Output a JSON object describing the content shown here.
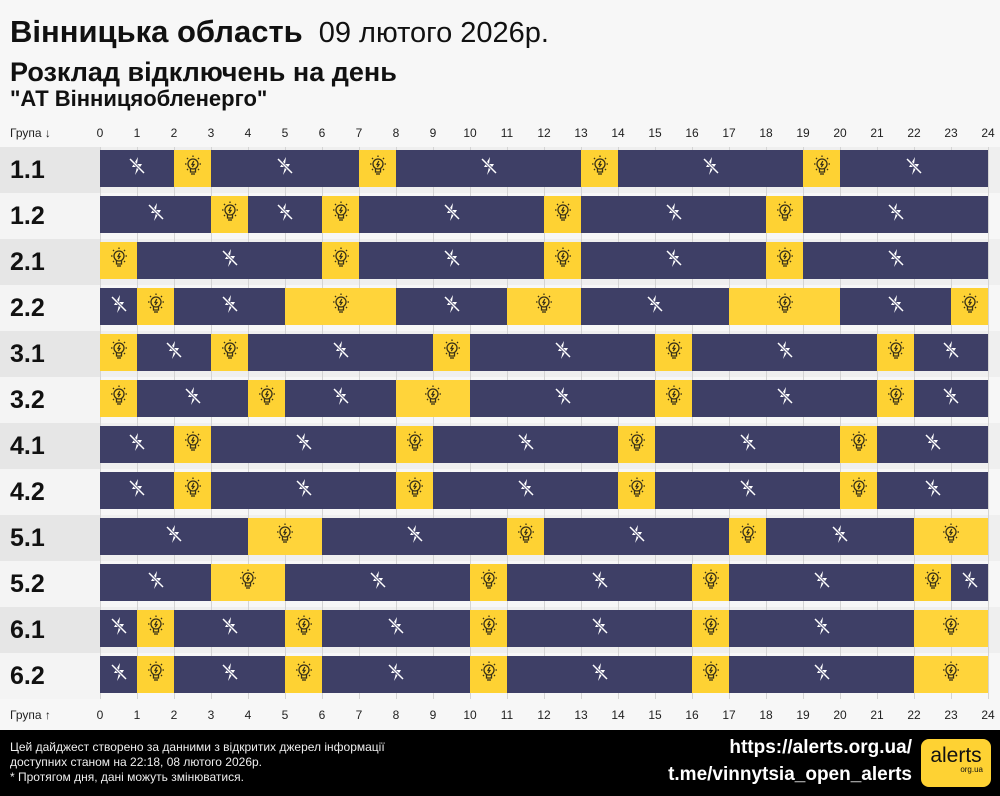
{
  "header": {
    "region": "Вінницька область",
    "date": "09 лютого 2026р.",
    "title": "Розклад відключень на день",
    "company": "\"АТ Вінницяобленерго\""
  },
  "axis": {
    "top_label": "Група ↓",
    "bottom_label": "Група ↑",
    "hours": [
      "0",
      "1",
      "2",
      "3",
      "4",
      "5",
      "6",
      "7",
      "8",
      "9",
      "10",
      "11",
      "12",
      "13",
      "14",
      "15",
      "16",
      "17",
      "18",
      "19",
      "20",
      "21",
      "22",
      "23",
      "24"
    ]
  },
  "colors": {
    "off": "#3e3f66",
    "on": "#fed233",
    "footer_bg": "#000000"
  },
  "icons": {
    "off": "no-power-lightning-icon",
    "on": "lightbulb-icon"
  },
  "chart_data": {
    "type": "timeline",
    "x_range": [
      0,
      24
    ],
    "x_unit": "hour",
    "groups": [
      {
        "name": "1.1",
        "segments": [
          [
            0,
            2,
            "off"
          ],
          [
            2,
            3,
            "on"
          ],
          [
            3,
            7,
            "off"
          ],
          [
            7,
            8,
            "on"
          ],
          [
            8,
            13,
            "off"
          ],
          [
            13,
            14,
            "on"
          ],
          [
            14,
            19,
            "off"
          ],
          [
            19,
            20,
            "on"
          ],
          [
            20,
            24,
            "off"
          ]
        ]
      },
      {
        "name": "1.2",
        "segments": [
          [
            0,
            3,
            "off"
          ],
          [
            3,
            4,
            "on"
          ],
          [
            4,
            6,
            "off"
          ],
          [
            6,
            7,
            "on"
          ],
          [
            7,
            12,
            "off"
          ],
          [
            12,
            13,
            "on"
          ],
          [
            13,
            18,
            "off"
          ],
          [
            18,
            19,
            "on"
          ],
          [
            19,
            24,
            "off"
          ]
        ]
      },
      {
        "name": "2.1",
        "segments": [
          [
            0,
            1,
            "on"
          ],
          [
            1,
            6,
            "off"
          ],
          [
            6,
            7,
            "on"
          ],
          [
            7,
            12,
            "off"
          ],
          [
            12,
            13,
            "on"
          ],
          [
            13,
            18,
            "off"
          ],
          [
            18,
            19,
            "on"
          ],
          [
            19,
            24,
            "off"
          ]
        ]
      },
      {
        "name": "2.2",
        "segments": [
          [
            0,
            1,
            "off"
          ],
          [
            1,
            2,
            "on"
          ],
          [
            2,
            5,
            "off"
          ],
          [
            5,
            8,
            "on"
          ],
          [
            8,
            11,
            "off"
          ],
          [
            11,
            13,
            "on"
          ],
          [
            13,
            17,
            "off"
          ],
          [
            17,
            20,
            "on"
          ],
          [
            20,
            23,
            "off"
          ],
          [
            23,
            24,
            "on"
          ]
        ]
      },
      {
        "name": "3.1",
        "segments": [
          [
            0,
            1,
            "on"
          ],
          [
            1,
            3,
            "off"
          ],
          [
            3,
            4,
            "on"
          ],
          [
            4,
            9,
            "off"
          ],
          [
            9,
            10,
            "on"
          ],
          [
            10,
            15,
            "off"
          ],
          [
            15,
            16,
            "on"
          ],
          [
            16,
            21,
            "off"
          ],
          [
            21,
            22,
            "on"
          ],
          [
            22,
            24,
            "off"
          ]
        ]
      },
      {
        "name": "3.2",
        "segments": [
          [
            0,
            1,
            "on"
          ],
          [
            1,
            4,
            "off"
          ],
          [
            4,
            5,
            "on"
          ],
          [
            5,
            8,
            "off"
          ],
          [
            8,
            10,
            "on"
          ],
          [
            10,
            15,
            "off"
          ],
          [
            15,
            16,
            "on"
          ],
          [
            16,
            21,
            "off"
          ],
          [
            21,
            22,
            "on"
          ],
          [
            22,
            24,
            "off"
          ]
        ]
      },
      {
        "name": "4.1",
        "segments": [
          [
            0,
            2,
            "off"
          ],
          [
            2,
            3,
            "on"
          ],
          [
            3,
            8,
            "off"
          ],
          [
            8,
            9,
            "on"
          ],
          [
            9,
            14,
            "off"
          ],
          [
            14,
            15,
            "on"
          ],
          [
            15,
            20,
            "off"
          ],
          [
            20,
            21,
            "on"
          ],
          [
            21,
            24,
            "off"
          ]
        ]
      },
      {
        "name": "4.2",
        "segments": [
          [
            0,
            2,
            "off"
          ],
          [
            2,
            3,
            "on"
          ],
          [
            3,
            8,
            "off"
          ],
          [
            8,
            9,
            "on"
          ],
          [
            9,
            14,
            "off"
          ],
          [
            14,
            15,
            "on"
          ],
          [
            15,
            20,
            "off"
          ],
          [
            20,
            21,
            "on"
          ],
          [
            21,
            24,
            "off"
          ]
        ]
      },
      {
        "name": "5.1",
        "segments": [
          [
            0,
            4,
            "off"
          ],
          [
            4,
            6,
            "on"
          ],
          [
            6,
            11,
            "off"
          ],
          [
            11,
            12,
            "on"
          ],
          [
            12,
            17,
            "off"
          ],
          [
            17,
            18,
            "on"
          ],
          [
            18,
            22,
            "off"
          ],
          [
            22,
            24,
            "on"
          ]
        ]
      },
      {
        "name": "5.2",
        "segments": [
          [
            0,
            3,
            "off"
          ],
          [
            3,
            5,
            "on"
          ],
          [
            5,
            10,
            "off"
          ],
          [
            10,
            11,
            "on"
          ],
          [
            11,
            16,
            "off"
          ],
          [
            16,
            17,
            "on"
          ],
          [
            17,
            22,
            "off"
          ],
          [
            22,
            23,
            "on"
          ],
          [
            23,
            24,
            "off"
          ]
        ]
      },
      {
        "name": "6.1",
        "segments": [
          [
            0,
            1,
            "off"
          ],
          [
            1,
            2,
            "on"
          ],
          [
            2,
            5,
            "off"
          ],
          [
            5,
            6,
            "on"
          ],
          [
            6,
            10,
            "off"
          ],
          [
            10,
            11,
            "on"
          ],
          [
            11,
            16,
            "off"
          ],
          [
            16,
            17,
            "on"
          ],
          [
            17,
            22,
            "off"
          ],
          [
            22,
            24,
            "on"
          ]
        ]
      },
      {
        "name": "6.2",
        "segments": [
          [
            0,
            1,
            "off"
          ],
          [
            1,
            2,
            "on"
          ],
          [
            2,
            5,
            "off"
          ],
          [
            5,
            6,
            "on"
          ],
          [
            6,
            10,
            "off"
          ],
          [
            10,
            11,
            "on"
          ],
          [
            11,
            16,
            "off"
          ],
          [
            16,
            17,
            "on"
          ],
          [
            17,
            22,
            "off"
          ],
          [
            22,
            24,
            "on"
          ]
        ]
      }
    ]
  },
  "footer": {
    "note_line1": "Цей дайджест створено за данними з відкритих джерел інформації",
    "note_line2": "доступних станом на 22:18, 08 лютого 2026р.",
    "note_line3": "* Протягом дня, дані можуть змінюватися.",
    "url": "https://alerts.org.ua/",
    "telegram": "t.me/vinnytsia_open_alerts",
    "logo_text": "alerts",
    "logo_sub": "org.ua"
  }
}
